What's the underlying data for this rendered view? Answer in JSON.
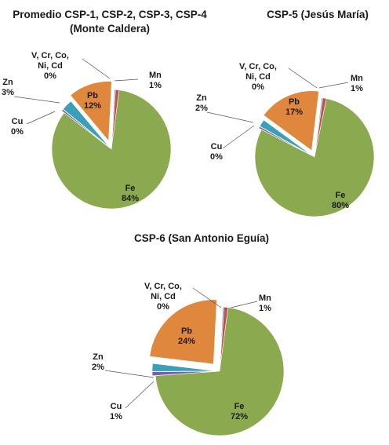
{
  "colors": {
    "fe": "#8ba94e",
    "pb": "#e0873e",
    "zn": "#3aa0b8",
    "cu": "#7b5ea7",
    "mn": "#c0504d",
    "v": "#4f81bd"
  },
  "chart_data": [
    {
      "type": "pie",
      "title": "Promedio CSP-1, CSP-2, CSP-3, CSP-4",
      "subtitle": "(Monte Caldera)",
      "slices": [
        {
          "key": "mn",
          "name": "Mn",
          "value": 1,
          "label": "1%"
        },
        {
          "key": "fe",
          "name": "Fe",
          "value": 84,
          "label": "84%"
        },
        {
          "key": "cu",
          "name": "Cu",
          "value": 0.5,
          "label": "0%"
        },
        {
          "key": "zn",
          "name": "Zn",
          "value": 3,
          "label": "3%"
        },
        {
          "key": "pb",
          "name": "Pb",
          "value": 12,
          "label": "12%"
        },
        {
          "key": "v",
          "name": "V, Cr, Co, Ni, Cd",
          "value": 0.3,
          "label": "0%"
        }
      ]
    },
    {
      "type": "pie",
      "title": "CSP-5 (Jesús María)",
      "slices": [
        {
          "key": "mn",
          "name": "Mn",
          "value": 1,
          "label": "1%"
        },
        {
          "key": "fe",
          "name": "Fe",
          "value": 80,
          "label": "80%"
        },
        {
          "key": "cu",
          "name": "Cu",
          "value": 0.5,
          "label": "0%"
        },
        {
          "key": "zn",
          "name": "Zn",
          "value": 2,
          "label": "2%"
        },
        {
          "key": "pb",
          "name": "Pb",
          "value": 17,
          "label": "17%"
        },
        {
          "key": "v",
          "name": "V, Cr, Co, Ni, Cd",
          "value": 0.3,
          "label": "0%"
        }
      ]
    },
    {
      "type": "pie",
      "title": "CSP-6 (San Antonio Eguía)",
      "slices": [
        {
          "key": "mn",
          "name": "Mn",
          "value": 1,
          "label": "1%"
        },
        {
          "key": "fe",
          "name": "Fe",
          "value": 72,
          "label": "72%"
        },
        {
          "key": "cu",
          "name": "Cu",
          "value": 1,
          "label": "1%"
        },
        {
          "key": "zn",
          "name": "Zn",
          "value": 2,
          "label": "2%"
        },
        {
          "key": "pb",
          "name": "Pb",
          "value": 24,
          "label": "24%"
        },
        {
          "key": "v",
          "name": "V, Cr, Co, Ni, Cd",
          "value": 0.3,
          "label": "0%"
        }
      ]
    }
  ]
}
